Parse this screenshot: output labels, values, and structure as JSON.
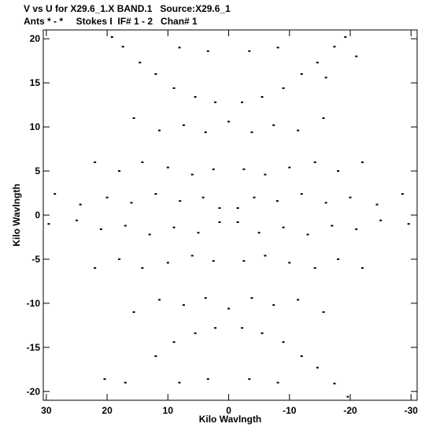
{
  "header": {
    "line1": "V vs U for X29.6_1.X BAND.1   Source:X29.6_1",
    "line2": "Ants * - *     Stokes I  IF# 1 - 2   Chan# 1"
  },
  "chart_data": {
    "type": "scatter",
    "title": "V vs U for X29.6_1.X BAND.1   Source:X29.6_1",
    "subtitle": "Ants * - *     Stokes I  IF# 1 - 2   Chan# 1",
    "xlabel": "Kilo Wavlngth",
    "ylabel": "Kilo Wavlngth",
    "xlim": [
      30.5,
      -31.0
    ],
    "ylim": [
      -21.0,
      21.0
    ],
    "x_reversed": true,
    "xticks": [
      30,
      20,
      10,
      0,
      -10,
      -20,
      -30
    ],
    "yticks": [
      -20,
      -15,
      -10,
      -5,
      0,
      5,
      10,
      15,
      20
    ],
    "grid": false,
    "point_color": "#000000",
    "series": [
      {
        "description_rays": "uv-coverage tracks, sampled points (u, v) in kilo-wavelength",
        "points": [
          [
            19.2,
            20.2
          ],
          [
            17.4,
            19.1
          ],
          [
            14.6,
            17.3
          ],
          [
            8.1,
            19.0
          ],
          [
            3.4,
            18.6
          ],
          [
            -3.4,
            18.6
          ],
          [
            -8.1,
            19.0
          ],
          [
            -14.6,
            17.3
          ],
          [
            -17.4,
            19.1
          ],
          [
            -19.2,
            20.2
          ],
          [
            -21.0,
            18.0
          ],
          [
            -16.0,
            15.6
          ],
          [
            12.0,
            16.0
          ],
          [
            9.0,
            14.4
          ],
          [
            5.5,
            13.4
          ],
          [
            2.2,
            12.8
          ],
          [
            -2.2,
            12.8
          ],
          [
            -5.5,
            13.4
          ],
          [
            -9.0,
            14.4
          ],
          [
            -12.0,
            16.0
          ],
          [
            15.6,
            11.0
          ],
          [
            11.4,
            9.6
          ],
          [
            7.4,
            10.2
          ],
          [
            3.8,
            9.4
          ],
          [
            0.0,
            10.6
          ],
          [
            -3.8,
            9.4
          ],
          [
            -7.4,
            10.2
          ],
          [
            -11.4,
            9.6
          ],
          [
            -15.6,
            11.0
          ],
          [
            22.0,
            6.0
          ],
          [
            18.0,
            5.0
          ],
          [
            14.2,
            6.0
          ],
          [
            10.0,
            5.4
          ],
          [
            6.0,
            4.6
          ],
          [
            2.5,
            5.2
          ],
          [
            -2.5,
            5.2
          ],
          [
            -6.0,
            4.6
          ],
          [
            -10.0,
            5.4
          ],
          [
            -14.2,
            6.0
          ],
          [
            -18.0,
            5.0
          ],
          [
            -22.0,
            6.0
          ],
          [
            28.6,
            2.4
          ],
          [
            24.4,
            1.2
          ],
          [
            20.0,
            2.0
          ],
          [
            16.0,
            1.4
          ],
          [
            12.0,
            2.4
          ],
          [
            8.0,
            1.6
          ],
          [
            4.2,
            2.0
          ],
          [
            1.5,
            0.8
          ],
          [
            -1.5,
            0.8
          ],
          [
            -4.2,
            2.0
          ],
          [
            -8.0,
            1.6
          ],
          [
            -12.0,
            2.4
          ],
          [
            -16.0,
            1.4
          ],
          [
            -20.0,
            2.0
          ],
          [
            -24.4,
            1.2
          ],
          [
            -28.6,
            2.4
          ],
          [
            29.6,
            -1.0
          ],
          [
            25.0,
            -0.6
          ],
          [
            21.0,
            -1.6
          ],
          [
            17.0,
            -1.2
          ],
          [
            13.0,
            -2.2
          ],
          [
            9.0,
            -1.4
          ],
          [
            5.0,
            -2.0
          ],
          [
            1.5,
            -0.8
          ],
          [
            -1.5,
            -0.8
          ],
          [
            -5.0,
            -2.0
          ],
          [
            -9.0,
            -1.4
          ],
          [
            -13.0,
            -2.2
          ],
          [
            -17.0,
            -1.2
          ],
          [
            -21.0,
            -1.6
          ],
          [
            -25.0,
            -0.6
          ],
          [
            -29.6,
            -1.0
          ],
          [
            22.0,
            -6.0
          ],
          [
            18.0,
            -5.0
          ],
          [
            14.2,
            -6.0
          ],
          [
            10.0,
            -5.4
          ],
          [
            6.0,
            -4.6
          ],
          [
            2.5,
            -5.2
          ],
          [
            -2.5,
            -5.2
          ],
          [
            -6.0,
            -4.6
          ],
          [
            -10.0,
            -5.4
          ],
          [
            -14.2,
            -6.0
          ],
          [
            -18.0,
            -5.0
          ],
          [
            -22.0,
            -6.0
          ],
          [
            15.6,
            -11.0
          ],
          [
            11.4,
            -9.6
          ],
          [
            7.4,
            -10.2
          ],
          [
            3.8,
            -9.4
          ],
          [
            0.0,
            -10.6
          ],
          [
            -3.8,
            -9.4
          ],
          [
            -7.4,
            -10.2
          ],
          [
            -11.4,
            -9.6
          ],
          [
            -15.6,
            -11.0
          ],
          [
            12.0,
            -16.0
          ],
          [
            9.0,
            -14.4
          ],
          [
            5.5,
            -13.4
          ],
          [
            2.2,
            -12.8
          ],
          [
            -2.2,
            -12.8
          ],
          [
            -5.5,
            -13.4
          ],
          [
            -9.0,
            -14.4
          ],
          [
            -12.0,
            -16.0
          ],
          [
            20.4,
            -18.6
          ],
          [
            17.0,
            -19.0
          ],
          [
            8.1,
            -19.0
          ],
          [
            3.4,
            -18.6
          ],
          [
            -3.4,
            -18.6
          ],
          [
            -8.1,
            -19.0
          ],
          [
            -14.6,
            -17.3
          ],
          [
            -17.4,
            -19.1
          ],
          [
            -19.6,
            -20.6
          ]
        ]
      }
    ]
  }
}
